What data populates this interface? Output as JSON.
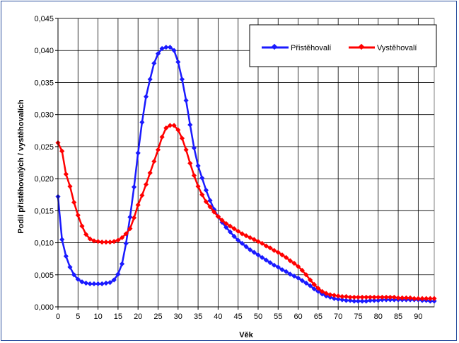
{
  "chart_data": {
    "type": "line",
    "title": "",
    "xlabel": "Věk",
    "ylabel": "Podíl přistěhovalých / vystěhovalích",
    "xlim": [
      0,
      94
    ],
    "ylim": [
      0,
      0.045
    ],
    "grid": true,
    "legend_position": "top-right",
    "x_ticks": [
      "0",
      "5",
      "10",
      "15",
      "20",
      "25",
      "30",
      "35",
      "40",
      "45",
      "50",
      "55",
      "60",
      "65",
      "70",
      "75",
      "80",
      "85",
      "90"
    ],
    "y_ticks": [
      "0,000",
      "0,005",
      "0,010",
      "0,015",
      "0,020",
      "0,025",
      "0,030",
      "0,035",
      "0,040",
      "0,045"
    ],
    "x": [
      0,
      1,
      2,
      3,
      4,
      5,
      6,
      7,
      8,
      9,
      10,
      11,
      12,
      13,
      14,
      15,
      16,
      17,
      18,
      19,
      20,
      21,
      22,
      23,
      24,
      25,
      26,
      27,
      28,
      29,
      30,
      31,
      32,
      33,
      34,
      35,
      36,
      37,
      38,
      39,
      40,
      41,
      42,
      43,
      44,
      45,
      46,
      47,
      48,
      49,
      50,
      51,
      52,
      53,
      54,
      55,
      56,
      57,
      58,
      59,
      60,
      61,
      62,
      63,
      64,
      65,
      66,
      67,
      68,
      69,
      70,
      71,
      72,
      73,
      74,
      75,
      76,
      77,
      78,
      79,
      80,
      81,
      82,
      83,
      84,
      85,
      86,
      87,
      88,
      89,
      90,
      91,
      92,
      93,
      94
    ],
    "series": [
      {
        "name": "Přistěhovalí",
        "color": "#1a1aff",
        "values": [
          0.0172,
          0.0105,
          0.0079,
          0.0062,
          0.005,
          0.0043,
          0.0039,
          0.0037,
          0.0036,
          0.0036,
          0.0036,
          0.0036,
          0.0037,
          0.0038,
          0.0042,
          0.0051,
          0.0067,
          0.0099,
          0.014,
          0.0187,
          0.024,
          0.0288,
          0.0328,
          0.0355,
          0.038,
          0.0395,
          0.0403,
          0.0405,
          0.0405,
          0.04,
          0.0382,
          0.0355,
          0.0322,
          0.0284,
          0.0248,
          0.022,
          0.0201,
          0.0182,
          0.0166,
          0.0152,
          0.0141,
          0.0132,
          0.0124,
          0.0117,
          0.011,
          0.0104,
          0.0099,
          0.0094,
          0.0089,
          0.0085,
          0.0081,
          0.0077,
          0.0073,
          0.0069,
          0.0065,
          0.0062,
          0.0058,
          0.0055,
          0.0051,
          0.0048,
          0.0045,
          0.0041,
          0.0037,
          0.0033,
          0.0028,
          0.0024,
          0.002,
          0.0017,
          0.0015,
          0.0013,
          0.0012,
          0.0011,
          0.001,
          0.001,
          0.0009,
          0.0009,
          0.0009,
          0.0009,
          0.001,
          0.001,
          0.001,
          0.0011,
          0.0011,
          0.0011,
          0.0011,
          0.0011,
          0.0011,
          0.0011,
          0.0011,
          0.0011,
          0.0011,
          0.001,
          0.001,
          0.0009,
          0.0009
        ]
      },
      {
        "name": "Vystěhovalí",
        "color": "#ff0000",
        "values": [
          0.0256,
          0.0243,
          0.0207,
          0.0188,
          0.0163,
          0.0143,
          0.0126,
          0.0113,
          0.0106,
          0.0103,
          0.0102,
          0.0101,
          0.0101,
          0.0101,
          0.0102,
          0.0104,
          0.0108,
          0.0114,
          0.0122,
          0.0139,
          0.0159,
          0.0174,
          0.0191,
          0.0209,
          0.0227,
          0.0245,
          0.0265,
          0.0279,
          0.0283,
          0.0283,
          0.0276,
          0.0263,
          0.0245,
          0.0224,
          0.0205,
          0.0188,
          0.0175,
          0.0164,
          0.0156,
          0.0148,
          0.0141,
          0.0135,
          0.013,
          0.0126,
          0.0122,
          0.0118,
          0.0114,
          0.0111,
          0.0108,
          0.0105,
          0.0102,
          0.0099,
          0.0095,
          0.0092,
          0.0088,
          0.0085,
          0.0081,
          0.0077,
          0.0072,
          0.0068,
          0.0063,
          0.0057,
          0.005,
          0.0042,
          0.0035,
          0.0029,
          0.0024,
          0.0021,
          0.0019,
          0.0018,
          0.0017,
          0.0016,
          0.0016,
          0.0015,
          0.0015,
          0.0015,
          0.0015,
          0.0015,
          0.0015,
          0.0015,
          0.0015,
          0.0015,
          0.0015,
          0.0015,
          0.0015,
          0.0014,
          0.0014,
          0.0014,
          0.0014,
          0.0013,
          0.0013,
          0.0013,
          0.0013,
          0.0013,
          0.0013
        ]
      }
    ]
  }
}
